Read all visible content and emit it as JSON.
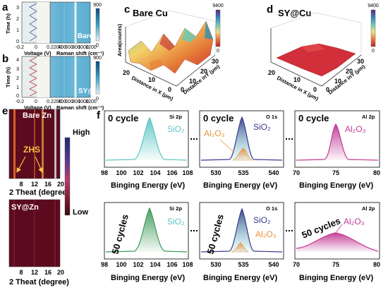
{
  "panel_letters": {
    "a": "a",
    "b": "b",
    "c": "c",
    "d": "d",
    "e": "e",
    "f": "f"
  },
  "panel_a": {
    "sample": "Bare Zn",
    "ylabel": "Time (h)",
    "yticks": [
      "0",
      "1",
      "2",
      "3"
    ],
    "voltage_xlabel": "Voltage (V)",
    "voltage_xticks": [
      "-0.2",
      "0",
      "0.2"
    ],
    "raman_xlabel": "Raman shift (cm⁻¹)",
    "raman_xticks": [
      "200",
      "400",
      "600",
      "800",
      "1000",
      "1200"
    ],
    "colorbar_max": "900",
    "colorbar_min": "0"
  },
  "panel_b": {
    "sample": "SY@Zn",
    "ylabel": "Time (h)",
    "yticks": [
      "0",
      "1",
      "2",
      "3",
      "4"
    ],
    "voltage_xlabel": "Voltage (V)",
    "voltage_xticks": [
      "-0.2",
      "0",
      "0.2"
    ],
    "raman_xlabel": "Raman shift (cm⁻¹)",
    "raman_xticks": [
      "200",
      "400",
      "600",
      "800",
      "1000",
      "1200"
    ],
    "colorbar_max": "900",
    "colorbar_min": "0"
  },
  "panel_c": {
    "sample": "Bare Cu",
    "zlabel": "Area(counts)",
    "xlabel": "Distance in X (μm)",
    "ylabel": "Distance inY (μm)",
    "xticks": [
      "20",
      "10",
      "0"
    ],
    "yticks": [
      "0",
      "10",
      "20",
      "30"
    ],
    "colorbar_max": "9400",
    "colorbar_min": "0"
  },
  "panel_d": {
    "sample": "SY@Cu",
    "xlabel": "Distance in X (μm)",
    "ylabel": "Distance inY (μm)",
    "xticks": [
      "20",
      "10",
      "0"
    ],
    "yticks": [
      "0",
      "10",
      "20",
      "30"
    ],
    "colorbar_max": "9400",
    "colorbar_min": "0"
  },
  "panel_e": {
    "top_sample": "Bare Zn",
    "bottom_sample": "SY@Zn",
    "annotation": "ZHS",
    "xlabel": "2 Theat (degree)",
    "xticks": [
      "8",
      "12",
      "16",
      "20"
    ],
    "colorbar_high": "High",
    "colorbar_low": "Low"
  },
  "panel_f": {
    "xlabel": "Binging  Energy (eV)",
    "rows": [
      {
        "cycle": "0 cycle",
        "plots": [
          {
            "region": "Si 2p",
            "species": [
              "SiO₂"
            ],
            "xticks": [
              "98",
              "100",
              "102",
              "104",
              "106",
              "108"
            ]
          },
          {
            "region": "O 1s",
            "species": [
              "SiO₂",
              "Al₂O₃"
            ],
            "xticks": [
              "530",
              "535",
              "540"
            ]
          },
          {
            "region": "Al 2p",
            "species": [
              "Al₂O₃"
            ],
            "xticks": [
              "70",
              "75",
              "80"
            ]
          }
        ]
      },
      {
        "cycle": "50 cycles",
        "plots": [
          {
            "region": "Si 2p",
            "species": [
              "SiO₂"
            ],
            "xticks": [
              "98",
              "100",
              "102",
              "104",
              "106",
              "108"
            ]
          },
          {
            "region": "O 1s",
            "species": [
              "SiO₂",
              "Al₂O₃"
            ],
            "xticks": [
              "530",
              "535",
              "540"
            ]
          },
          {
            "region": "Al 2p",
            "species": [
              "Al₂O₃"
            ],
            "xticks": [
              "70",
              "75",
              "80"
            ]
          }
        ]
      }
    ]
  },
  "colors": {
    "teal": "#5cc6c4",
    "navy": "#3b3c8c",
    "orange": "#e8933a",
    "magenta": "#c13a95",
    "green": "#3f9a58",
    "heat_dark": "#5c0b1e"
  }
}
